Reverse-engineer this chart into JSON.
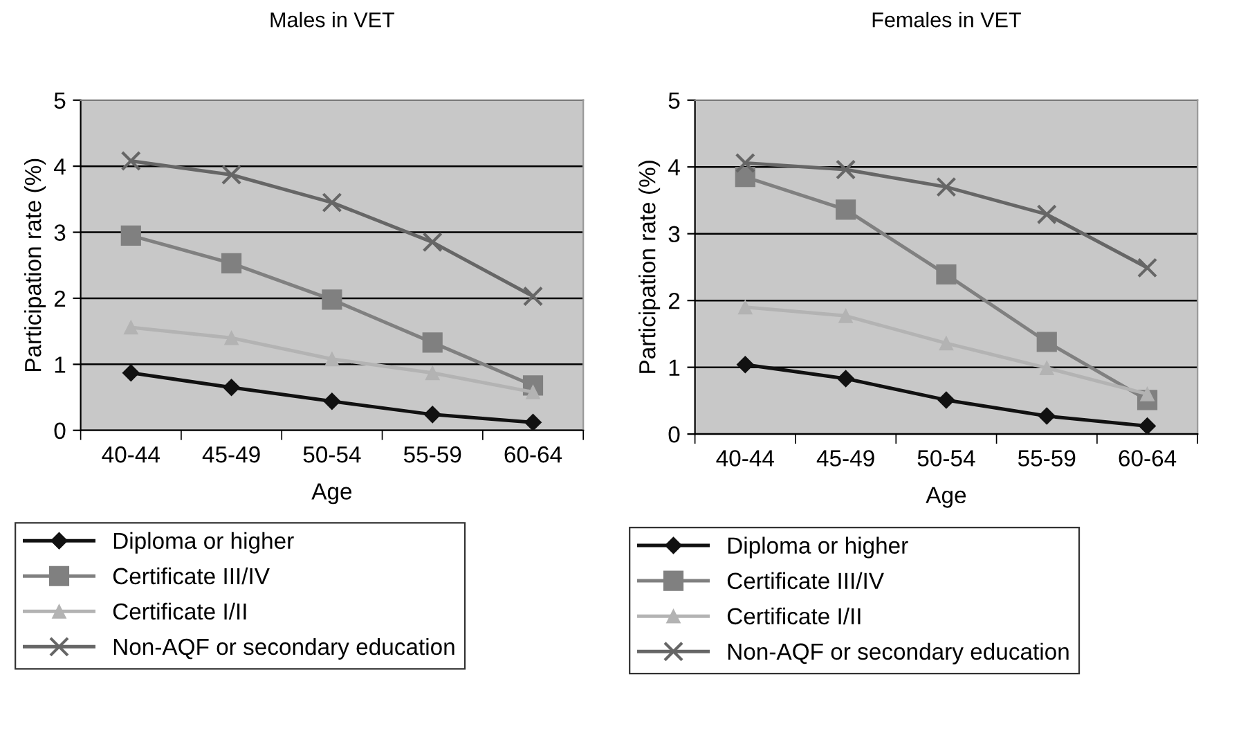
{
  "chart_data": [
    {
      "type": "line",
      "title": "Males in VET",
      "xlabel": "Age",
      "ylabel": "Participation rate (%)",
      "categories": [
        "40-44",
        "45-49",
        "50-54",
        "55-59",
        "60-64"
      ],
      "series": [
        {
          "name": "Diploma or higher",
          "color": "#111111",
          "marker": "diamond",
          "values": [
            0.87,
            0.65,
            0.44,
            0.24,
            0.12
          ]
        },
        {
          "name": "Certificate III/IV",
          "color": "#808080",
          "marker": "square",
          "values": [
            2.95,
            2.53,
            1.98,
            1.33,
            0.68
          ]
        },
        {
          "name": "Certificate I/II",
          "color": "#b3b3b3",
          "marker": "triangle",
          "values": [
            1.56,
            1.4,
            1.08,
            0.87,
            0.58
          ]
        },
        {
          "name": "Non-AQF or secondary education",
          "color": "#666666",
          "marker": "cross",
          "values": [
            4.08,
            3.87,
            3.45,
            2.85,
            2.03
          ]
        }
      ],
      "ylim": [
        0,
        5
      ],
      "yticks": [
        0,
        1,
        2,
        3,
        4,
        5
      ],
      "grid": "y",
      "legend": "bottom"
    },
    {
      "type": "line",
      "title": "Females in VET",
      "xlabel": "Age",
      "ylabel": "Participation rate (%)",
      "categories": [
        "40-44",
        "45-49",
        "50-54",
        "55-59",
        "60-64"
      ],
      "series": [
        {
          "name": "Diploma or higher",
          "color": "#111111",
          "marker": "diamond",
          "values": [
            1.04,
            0.83,
            0.51,
            0.27,
            0.12
          ]
        },
        {
          "name": "Certificate III/IV",
          "color": "#808080",
          "marker": "square",
          "values": [
            3.85,
            3.36,
            2.39,
            1.38,
            0.51
          ]
        },
        {
          "name": "Certificate I/II",
          "color": "#b3b3b3",
          "marker": "triangle",
          "values": [
            1.9,
            1.77,
            1.36,
            0.99,
            0.6
          ]
        },
        {
          "name": "Non-AQF or secondary education",
          "color": "#666666",
          "marker": "cross",
          "values": [
            4.06,
            3.96,
            3.7,
            3.29,
            2.49
          ]
        }
      ],
      "ylim": [
        0,
        5
      ],
      "yticks": [
        0,
        1,
        2,
        3,
        4,
        5
      ],
      "grid": "y",
      "legend": "bottom"
    }
  ]
}
